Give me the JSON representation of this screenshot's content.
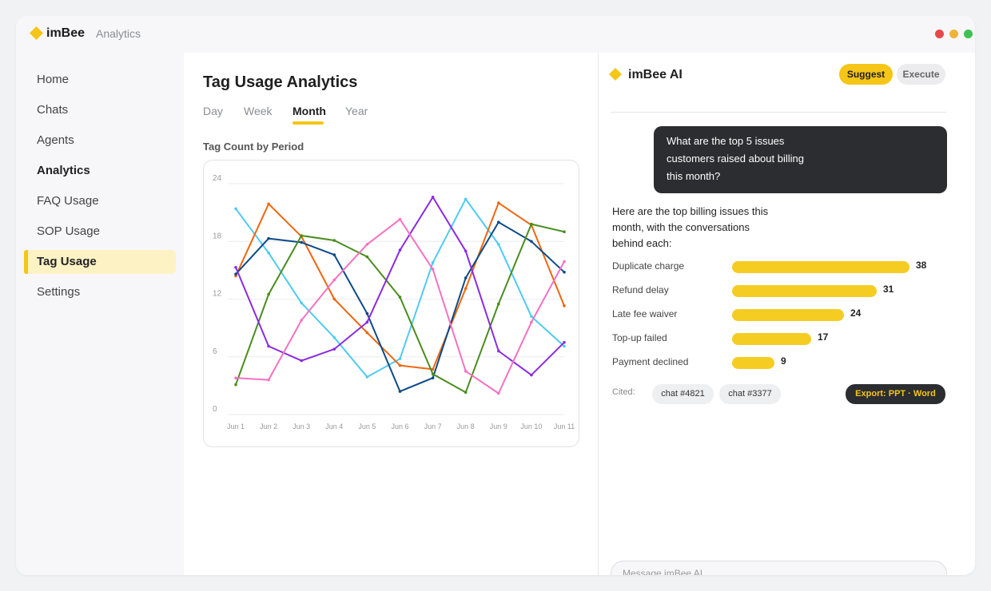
{
  "app": {
    "brand": "imBee",
    "breadcrumb": "Analytics",
    "colors": {
      "accent": "#f5c518",
      "dark": "#2c2d30",
      "traffic_red": "#e8484a",
      "traffic_yellow": "#f0b33a",
      "traffic_green": "#3cc250"
    }
  },
  "sidebar": {
    "items": [
      {
        "label": "Home"
      },
      {
        "label": "Chats"
      },
      {
        "label": "Agents"
      },
      {
        "label": "Analytics"
      },
      {
        "label": "FAQ Usage"
      },
      {
        "label": "SOP Usage"
      },
      {
        "label": "Tag Usage"
      },
      {
        "label": "Settings"
      }
    ]
  },
  "main": {
    "title": "Tag Usage Analytics",
    "tabs": [
      {
        "label": "Day"
      },
      {
        "label": "Week"
      },
      {
        "label": "Month"
      },
      {
        "label": "Year"
      }
    ],
    "active_tab": "Month",
    "chart_label": "Tag Count by Period"
  },
  "chart_data": {
    "type": "line",
    "title": "",
    "xlabel": "",
    "ylabel": "",
    "x": [
      "Jun 1",
      "Jun 2",
      "Jun 3",
      "Jun 4",
      "Jun 5",
      "Jun 6",
      "Jun 7",
      "Jun 8",
      "Jun 9",
      "Jun 10",
      "Jun 11"
    ],
    "ylim": [
      0,
      24
    ],
    "yticks": [
      0,
      6,
      12,
      18,
      24
    ],
    "grid": true,
    "legend": "none",
    "series": [
      {
        "color": "#4fcbf0",
        "values": [
          21.4,
          16.8,
          11.6,
          8.0,
          3.9,
          5.8,
          15.8,
          22.4,
          17.7,
          10.2,
          7.1
        ]
      },
      {
        "color": "#f0660e",
        "values": [
          14.4,
          21.9,
          18.5,
          12.0,
          8.5,
          5.1,
          4.7,
          13.1,
          22.0,
          19.7,
          11.3
        ]
      },
      {
        "color": "#0d4a87",
        "values": [
          14.6,
          18.3,
          17.9,
          16.6,
          10.5,
          2.4,
          3.8,
          14.2,
          20.0,
          18.0,
          14.8
        ]
      },
      {
        "color": "#4a8c1e",
        "values": [
          3.1,
          12.5,
          18.6,
          18.1,
          16.4,
          12.2,
          4.2,
          2.3,
          11.5,
          19.8,
          19.0
        ]
      },
      {
        "color": "#8a2be2",
        "values": [
          15.3,
          7.1,
          5.6,
          6.8,
          9.6,
          17.1,
          22.6,
          17.0,
          6.6,
          4.1,
          7.5
        ]
      },
      {
        "color": "#f571c3",
        "values": [
          3.8,
          3.6,
          9.8,
          14.0,
          17.7,
          20.3,
          15.1,
          4.5,
          2.2,
          9.6,
          15.9
        ]
      }
    ]
  },
  "ai": {
    "title": "imBee AI",
    "suggest_label": "Suggest",
    "execute_label": "Execute",
    "user_message_lines": [
      "What are the top 5 issues",
      "customers raised about billing",
      "this month?"
    ],
    "answer_lines": [
      "Here are the top billing issues this",
      "month, with the conversations",
      "behind each:"
    ],
    "issues": [
      {
        "label": "Duplicate charge",
        "value": 38
      },
      {
        "label": "Refund delay",
        "value": 31
      },
      {
        "label": "Late fee waiver",
        "value": 24
      },
      {
        "label": "Top-up failed",
        "value": 17
      },
      {
        "label": "Payment declined",
        "value": 9
      }
    ],
    "cited_label": "Cited:",
    "citations": [
      "chat #4821",
      "chat #3377"
    ],
    "export_label": "Export: PPT · Word",
    "composer_placeholder": "Message imBee AI…"
  }
}
